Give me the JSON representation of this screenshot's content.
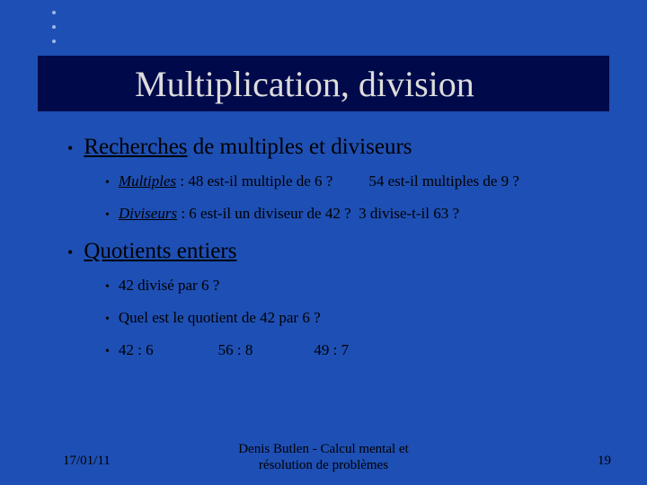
{
  "title": "Multiplication, division",
  "section1": {
    "prefix": "Recherches",
    "rest": " de multiples et diviseurs",
    "items": {
      "multiples": {
        "term": "Multiples",
        "q1": " : 48 est-il multiple de 6 ?",
        "q2": "54 est-il multiples de 9 ?"
      },
      "diviseurs": {
        "term": "Diviseurs",
        "q1": " : 6 est-il un diviseur de 42 ?",
        "q2": "3 divise-t-il 63 ?"
      }
    }
  },
  "section2": {
    "heading": "Quotients entiers",
    "items": {
      "a": "42 divisé par 6 ?",
      "b": "Quel est le quotient de 42 par 6 ?",
      "c1": "42 : 6",
      "c2": "56 : 8",
      "c3": "49 : 7"
    }
  },
  "footer": {
    "date": "17/01/11",
    "author_line1": "Denis Butlen - Calcul mental et",
    "author_line2": "résolution de problèmes",
    "page": "19"
  },
  "colors": {
    "background": "#1e4fb4",
    "title_bar": "#000a4a",
    "title_text": "#dcdcdc",
    "text": "#000000"
  }
}
